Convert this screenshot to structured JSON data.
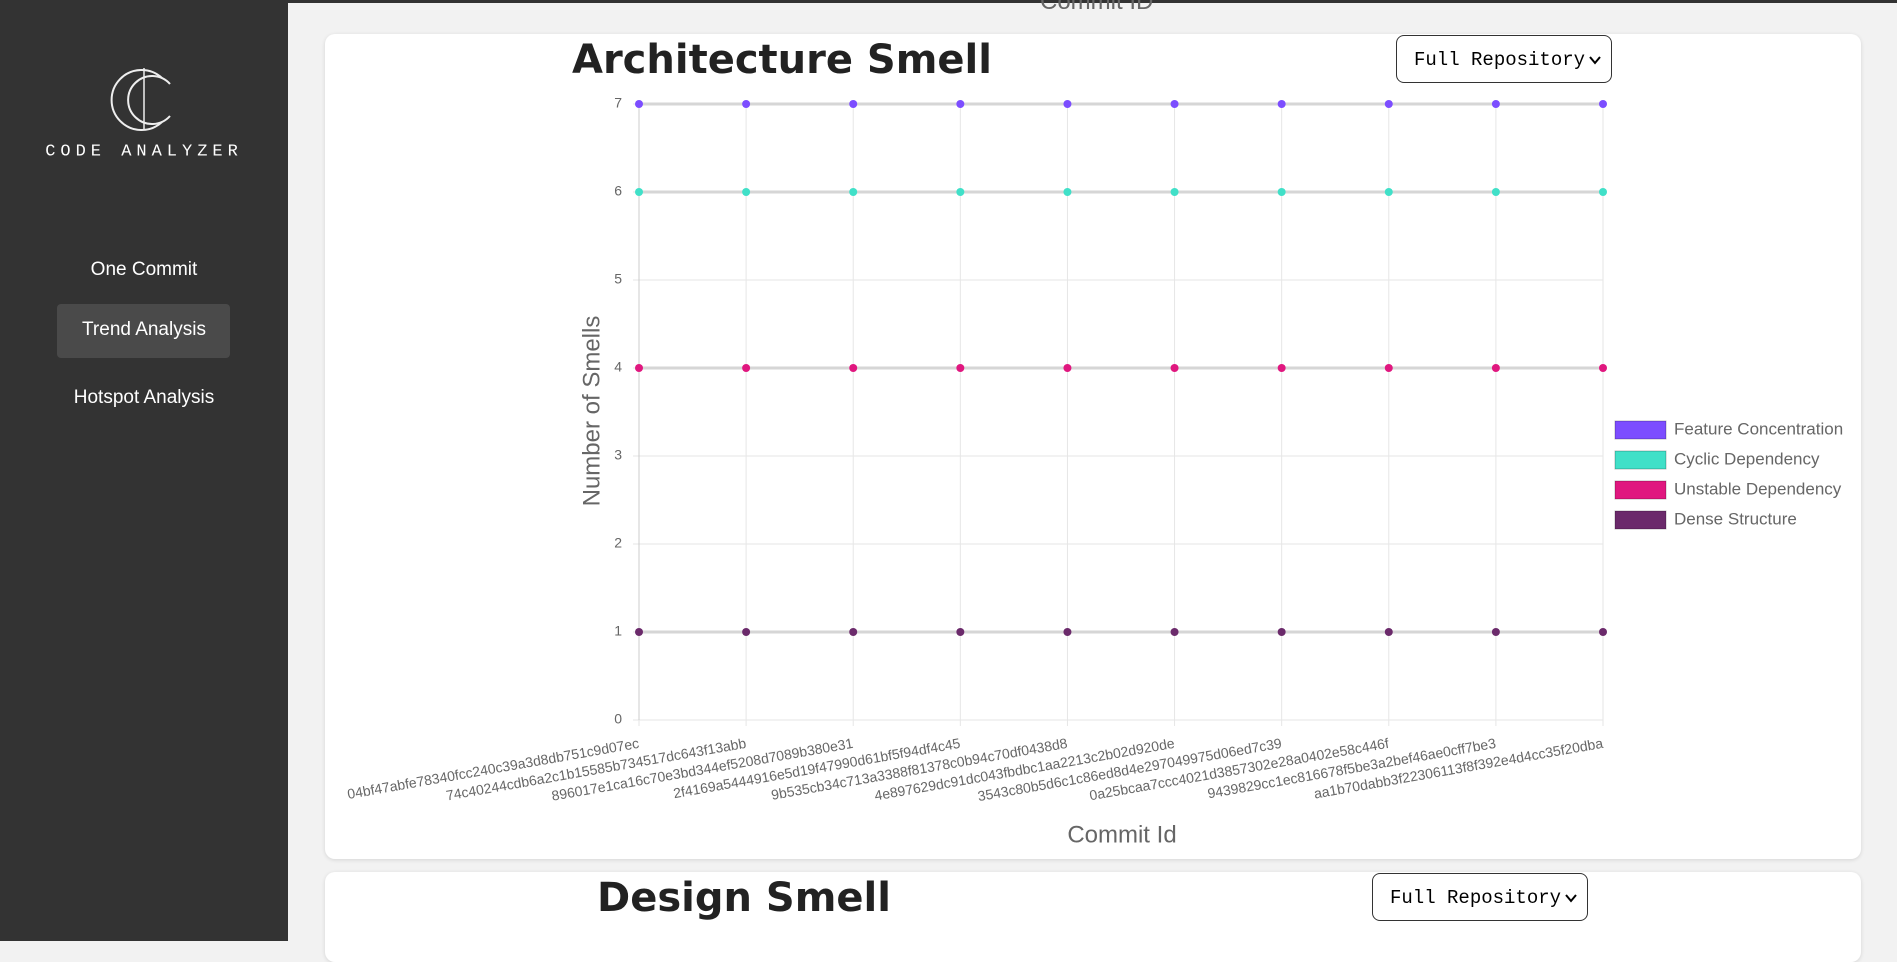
{
  "sidebar": {
    "logo": "CODE ANALYZER",
    "nav": [
      "One Commit",
      "Trend Analysis",
      "Hotspot Analysis"
    ]
  },
  "top_label": "Commit ID",
  "chart_data": {
    "type": "line",
    "title": "Architecture Smell",
    "dropdown": "Full Repository",
    "x_label": "Commit Id",
    "y_label": "Number of Smells",
    "categories": [
      "04bf47abfe78340fcc240c39a3d8db751c9d07ec",
      "74c40244cdb6a2c1b15585b734517dc643f13abb",
      "896017e1ca16c70e3bd344ef5208d7089b380e31",
      "2f4169a5444916e5d19f47990d61bf5f94df4c45",
      "9b535cb34c713a3388f81378c0b94c70df0438d8",
      "4e897629dc91dc043fbdbc1aa2213c2b02d920de",
      "3543c80b5d6c1c86ed8d4e297049975d06ed7c39",
      "0a25bcaa7ccc4021d3857302e28a0402e58c446f",
      "9439829cc1ec816678f5be3a2bef46ae0cff7be3",
      "aa1b70dabb3f22306113f8f392e4d4cc35f20dba"
    ],
    "series": [
      {
        "name": "Feature Concentration",
        "color": "#7c4dff",
        "values": [
          7,
          7,
          7,
          7,
          7,
          7,
          7,
          7,
          7,
          7
        ]
      },
      {
        "name": "Cyclic Dependency",
        "color": "#40e0c8",
        "values": [
          6,
          6,
          6,
          6,
          6,
          6,
          6,
          6,
          6,
          6
        ]
      },
      {
        "name": "Unstable Dependency",
        "color": "#e0177f",
        "values": [
          4,
          4,
          4,
          4,
          4,
          4,
          4,
          4,
          4,
          4
        ]
      },
      {
        "name": "Dense Structure",
        "color": "#6b2a6b",
        "values": [
          1,
          1,
          1,
          1,
          1,
          1,
          1,
          1,
          1,
          1
        ]
      }
    ],
    "ylim": [
      0,
      7
    ],
    "yticks": [
      0,
      1,
      2,
      3,
      4,
      5,
      6,
      7
    ],
    "grid": true,
    "legend": "right"
  },
  "design_smell": {
    "title": "Design Smell",
    "dropdown": "Full Repository"
  }
}
